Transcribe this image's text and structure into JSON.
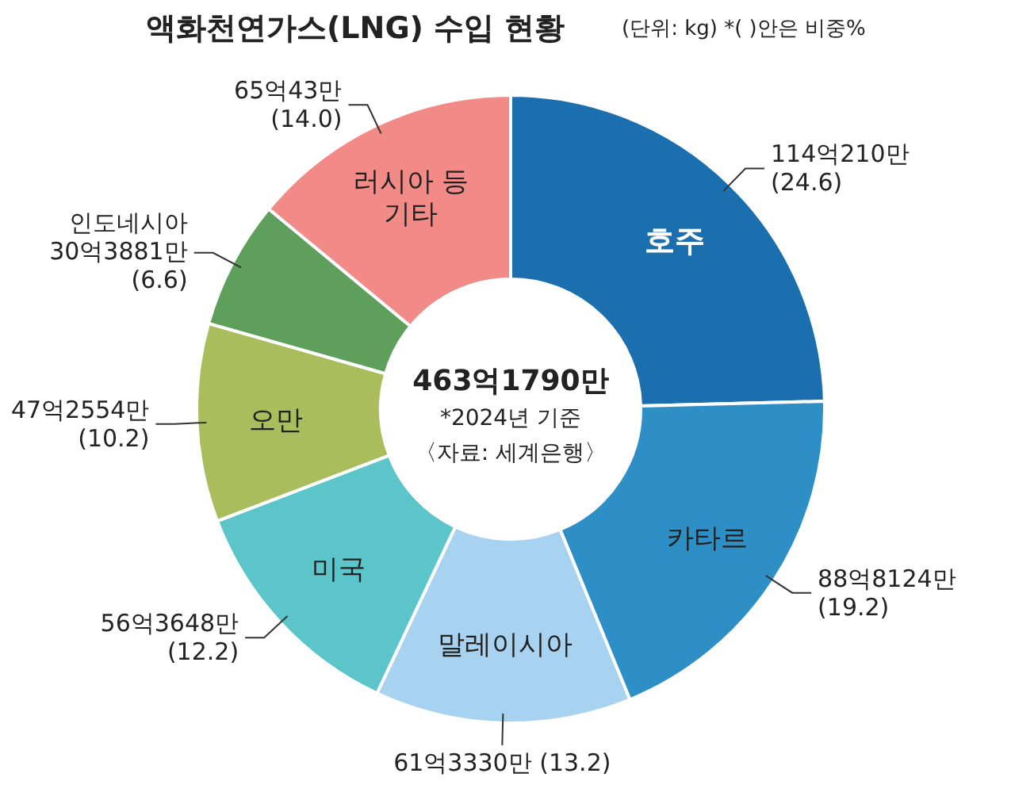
{
  "chart_data": {
    "type": "donut",
    "title": "액화천연가스(LNG) 수입 현황",
    "subtitle": "(단위: kg)  *( )안은 비중%",
    "categories": [
      "호주",
      "카타르",
      "말레이시아",
      "미국",
      "오만",
      "인도네시아",
      "러시아 등\n기타"
    ],
    "values": [
      24.6,
      19.2,
      13.2,
      12.2,
      10.2,
      6.6,
      14.0
    ],
    "colors": [
      "#1b6fae",
      "#2e8fc6",
      "#a8d3f0",
      "#5cc5c9",
      "#a9bd5c",
      "#5e9f5c",
      "#f28b87"
    ],
    "value_labels": [
      "114억210만\n(24.6)",
      "88억8124만\n(19.2)",
      "61억3330만 (13.2)",
      "56억3648만\n(12.2)",
      "47억2554만\n(10.2)",
      "30억3881만\n(6.6)",
      "65억43만\n(14.0)"
    ],
    "annotations": [
      "463억1790만",
      "*2024년 기준",
      "〈자료: 세계은행〉"
    ]
  }
}
